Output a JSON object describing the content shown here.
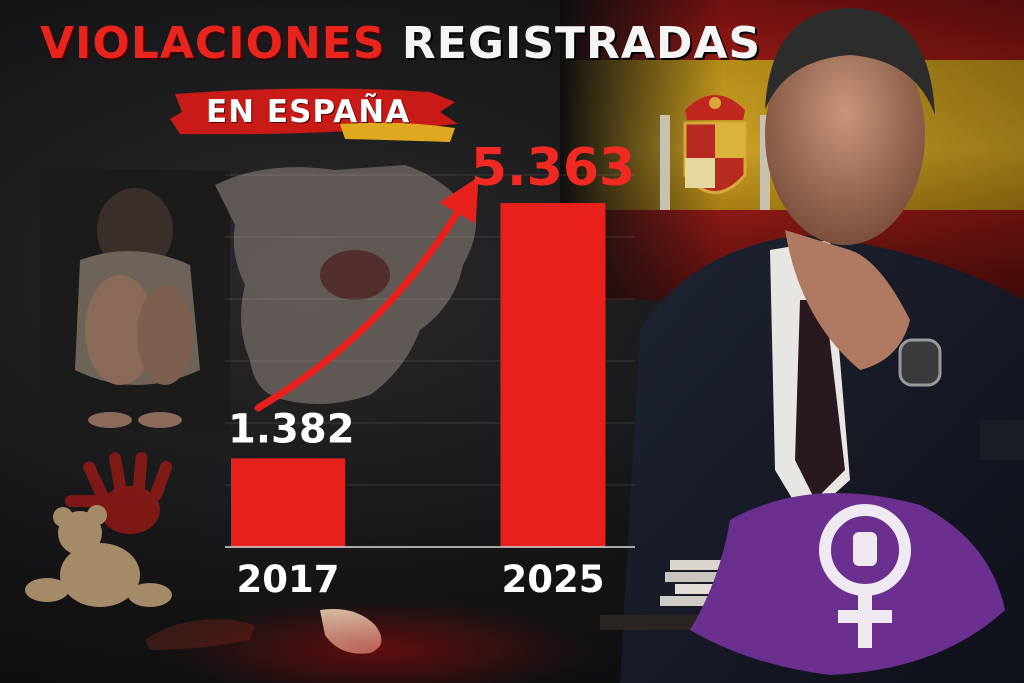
{
  "title": {
    "part1": "VIOLACIONES",
    "part2": "REGISTRADAS",
    "subtitle": "EN ESPAÑA"
  },
  "colors": {
    "accent_red": "#e8201c",
    "title_white": "#f4f4f4",
    "background": "#0d0d0f",
    "flag_red": "#9e1a14",
    "flag_yellow": "#e0b025",
    "feminist_purple": "#6b2f8f"
  },
  "chart_data": {
    "type": "bar",
    "categories": [
      "2017",
      "2025"
    ],
    "values": [
      1382,
      5363
    ],
    "value_labels": [
      "1.382",
      "5.363"
    ],
    "title": "VIOLACIONES REGISTRADAS EN ESPAÑA",
    "xlabel": "",
    "ylabel": "",
    "ylim": [
      0,
      5800
    ],
    "grid": true,
    "legend": "none",
    "annotation": "upward-trend-arrow"
  }
}
